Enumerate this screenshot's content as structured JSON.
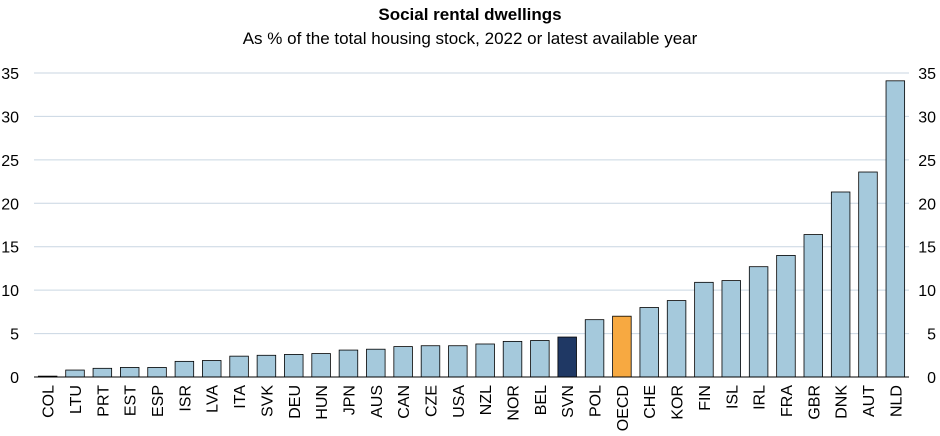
{
  "chart_data": {
    "type": "bar",
    "title": "Social rental dwellings",
    "subtitle": "As % of the total housing stock, 2022 or latest available year",
    "xlabel": "",
    "ylabel": "",
    "ylim": [
      0,
      35
    ],
    "yticks": [
      0,
      5,
      10,
      15,
      20,
      25,
      30,
      35
    ],
    "grid": true,
    "categories": [
      "COL",
      "LTU",
      "PRT",
      "EST",
      "ESP",
      "ISR",
      "LVA",
      "ITA",
      "SVK",
      "DEU",
      "HUN",
      "JPN",
      "AUS",
      "CAN",
      "CZE",
      "USA",
      "NZL",
      "NOR",
      "BEL",
      "SVN",
      "POL",
      "OECD",
      "CHE",
      "KOR",
      "FIN",
      "ISL",
      "IRL",
      "FRA",
      "GBR",
      "DNK",
      "AUT",
      "NLD"
    ],
    "values": [
      0.1,
      0.8,
      1.0,
      1.1,
      1.1,
      1.8,
      1.9,
      2.4,
      2.5,
      2.6,
      2.7,
      3.1,
      3.2,
      3.5,
      3.6,
      3.6,
      3.8,
      4.1,
      4.2,
      4.6,
      6.6,
      7.0,
      8.0,
      8.8,
      10.9,
      11.1,
      12.7,
      14.0,
      16.4,
      21.3,
      23.6,
      34.1
    ],
    "colors": {
      "default": "#a5c9dc",
      "SVN": "#1f3864",
      "OECD": "#f7a941"
    }
  }
}
